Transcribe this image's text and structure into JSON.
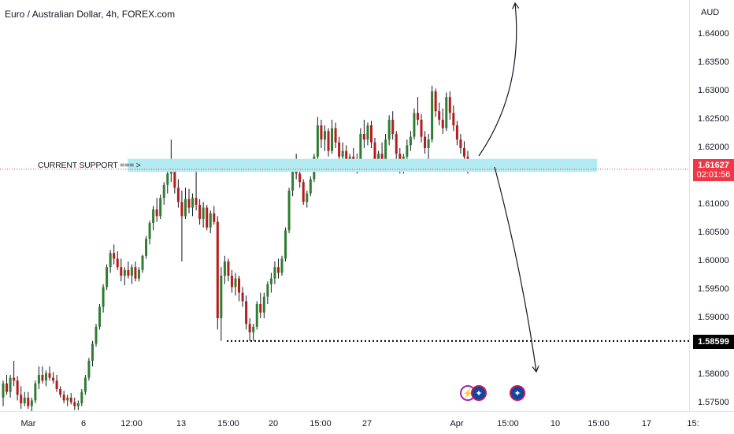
{
  "header": {
    "title": "Euro / Australian Dollar, 4h, FOREX.com"
  },
  "support_label": "CURRENT SUPPORT === >",
  "y_axis": {
    "currency": "AUD",
    "ticks": [
      "1.64000",
      "1.63500",
      "1.63000",
      "1.62500",
      "1.62000",
      "1.61000",
      "1.60500",
      "1.60000",
      "1.59500",
      "1.59000",
      "1.58000",
      "1.57500"
    ]
  },
  "price_tag": {
    "price": "1.61627",
    "countdown": "02:01:56"
  },
  "level_tag": "1.58599",
  "x_axis": {
    "ticks": [
      "Mar",
      "6",
      "12:00",
      "13",
      "15:00",
      "20",
      "15:00",
      "27",
      "Apr",
      "15:00",
      "10",
      "15:00",
      "17",
      "15:"
    ]
  },
  "events": [
    {
      "icon": "lightning-icon",
      "glyph": "⚡"
    },
    {
      "icon": "australia-flag-icon",
      "glyph": "✦"
    },
    {
      "icon": "australia-flag-icon",
      "glyph": "✦"
    }
  ],
  "colors": {
    "up": "#26a69a",
    "down": "#ef5350",
    "candle_up": "#2e7d32",
    "candle_down": "#b71c1c",
    "support_zone": "#b2ebf2",
    "price_line": "#f23645"
  },
  "chart_data": {
    "type": "candlestick",
    "symbol": "EURAUD",
    "timeframe": "4h",
    "ylim": [
      1.5735,
      1.6455
    ],
    "last_price": 1.61627,
    "support_zone": [
      1.6158,
      1.6181
    ],
    "support_level": 1.58599,
    "candles": [
      [
        1.576,
        1.579,
        1.5745,
        1.5785
      ],
      [
        1.5785,
        1.58,
        1.5765,
        1.577
      ],
      [
        1.577,
        1.58,
        1.576,
        1.5795
      ],
      [
        1.5795,
        1.5825,
        1.578,
        1.579
      ],
      [
        1.579,
        1.5798,
        1.5755,
        1.5765
      ],
      [
        1.5765,
        1.578,
        1.574,
        1.575
      ],
      [
        1.575,
        1.577,
        1.5745,
        1.576
      ],
      [
        1.576,
        1.577,
        1.574,
        1.5745
      ],
      [
        1.5745,
        1.576,
        1.5735,
        1.5755
      ],
      [
        1.5755,
        1.579,
        1.575,
        1.5785
      ],
      [
        1.5785,
        1.5815,
        1.5775,
        1.58
      ],
      [
        1.58,
        1.5815,
        1.5785,
        1.579
      ],
      [
        1.579,
        1.5808,
        1.578,
        1.5803
      ],
      [
        1.5803,
        1.5815,
        1.579,
        1.5795
      ],
      [
        1.5795,
        1.5805,
        1.5785,
        1.579
      ],
      [
        1.579,
        1.58,
        1.577,
        1.5775
      ],
      [
        1.5775,
        1.578,
        1.576,
        1.5765
      ],
      [
        1.5765,
        1.5772,
        1.575,
        1.5755
      ],
      [
        1.5755,
        1.5765,
        1.5745,
        1.576
      ],
      [
        1.576,
        1.5768,
        1.5748,
        1.5752
      ],
      [
        1.5752,
        1.576,
        1.5738,
        1.5745
      ],
      [
        1.5745,
        1.5755,
        1.5738,
        1.575
      ],
      [
        1.575,
        1.5775,
        1.5745,
        1.577
      ],
      [
        1.577,
        1.58,
        1.5765,
        1.5795
      ],
      [
        1.5795,
        1.583,
        1.579,
        1.5825
      ],
      [
        1.5825,
        1.586,
        1.5815,
        1.5855
      ],
      [
        1.5855,
        1.589,
        1.585,
        1.5885
      ],
      [
        1.5885,
        1.5925,
        1.588,
        1.592
      ],
      [
        1.592,
        1.596,
        1.591,
        1.5955
      ],
      [
        1.5955,
        1.5995,
        1.595,
        1.599
      ],
      [
        1.599,
        1.602,
        1.598,
        1.6015
      ],
      [
        1.6015,
        1.603,
        1.5995,
        1.6005
      ],
      [
        1.6005,
        1.6018,
        1.5985,
        1.599
      ],
      [
        1.599,
        1.6005,
        1.5965,
        1.5975
      ],
      [
        1.5975,
        1.599,
        1.5958,
        1.5985
      ],
      [
        1.5985,
        1.6,
        1.597,
        1.5975
      ],
      [
        1.5975,
        1.5995,
        1.596,
        1.599
      ],
      [
        1.599,
        1.6,
        1.5965,
        1.597
      ],
      [
        1.597,
        1.599,
        1.5965,
        1.5985
      ],
      [
        1.5985,
        1.6012,
        1.598,
        1.601
      ],
      [
        1.601,
        1.6045,
        1.6005,
        1.604
      ],
      [
        1.604,
        1.6072,
        1.603,
        1.6068
      ],
      [
        1.6068,
        1.6098,
        1.6055,
        1.6092
      ],
      [
        1.6092,
        1.6112,
        1.607,
        1.608
      ],
      [
        1.608,
        1.6118,
        1.6075,
        1.6112
      ],
      [
        1.6112,
        1.614,
        1.61,
        1.6135
      ],
      [
        1.6135,
        1.616,
        1.612,
        1.6155
      ],
      [
        1.6155,
        1.6215,
        1.614,
        1.6175
      ],
      [
        1.6175,
        1.618,
        1.612,
        1.613
      ],
      [
        1.613,
        1.6145,
        1.6095,
        1.6105
      ],
      [
        1.6105,
        1.6125,
        1.6,
        1.608
      ],
      [
        1.608,
        1.613,
        1.6075,
        1.611
      ],
      [
        1.611,
        1.6128,
        1.6085,
        1.6095
      ],
      [
        1.6095,
        1.612,
        1.608,
        1.6112
      ],
      [
        1.6112,
        1.616,
        1.609,
        1.61
      ],
      [
        1.61,
        1.611,
        1.6065,
        1.6075
      ],
      [
        1.6075,
        1.6105,
        1.606,
        1.6095
      ],
      [
        1.6095,
        1.61,
        1.6055,
        1.606
      ],
      [
        1.606,
        1.609,
        1.605,
        1.6085
      ],
      [
        1.6085,
        1.6098,
        1.6065,
        1.607
      ],
      [
        1.607,
        1.608,
        1.588,
        1.59
      ],
      [
        1.59,
        1.599,
        1.586,
        1.5975
      ],
      [
        1.5975,
        1.601,
        1.596,
        1.6
      ],
      [
        1.6,
        1.6005,
        1.5965,
        1.5975
      ],
      [
        1.5975,
        1.5985,
        1.5945,
        1.5955
      ],
      [
        1.5955,
        1.598,
        1.594,
        1.597
      ],
      [
        1.597,
        1.5975,
        1.593,
        1.5945
      ],
      [
        1.5945,
        1.5955,
        1.592,
        1.593
      ],
      [
        1.593,
        1.594,
        1.588,
        1.589
      ],
      [
        1.589,
        1.59,
        1.586,
        1.5875
      ],
      [
        1.5875,
        1.589,
        1.586,
        1.5885
      ],
      [
        1.5885,
        1.593,
        1.588,
        1.5925
      ],
      [
        1.5925,
        1.5945,
        1.59,
        1.591
      ],
      [
        1.591,
        1.5945,
        1.59,
        1.5938
      ],
      [
        1.5938,
        1.5965,
        1.5925,
        1.596
      ],
      [
        1.596,
        1.598,
        1.5945,
        1.597
      ],
      [
        1.597,
        1.6,
        1.596,
        1.599
      ],
      [
        1.599,
        1.6005,
        1.597,
        1.598
      ],
      [
        1.598,
        1.601,
        1.5975,
        1.6005
      ],
      [
        1.6005,
        1.606,
        1.6,
        1.6055
      ],
      [
        1.6055,
        1.613,
        1.605,
        1.6125
      ],
      [
        1.6125,
        1.6175,
        1.6115,
        1.617
      ],
      [
        1.617,
        1.619,
        1.6145,
        1.6155
      ],
      [
        1.6155,
        1.616,
        1.613,
        1.614
      ],
      [
        1.614,
        1.6145,
        1.61,
        1.6105
      ],
      [
        1.6105,
        1.6125,
        1.6095,
        1.612
      ],
      [
        1.612,
        1.615,
        1.6115,
        1.6145
      ],
      [
        1.6145,
        1.619,
        1.614,
        1.6185
      ],
      [
        1.6185,
        1.6255,
        1.618,
        1.624
      ],
      [
        1.624,
        1.625,
        1.62,
        1.6215
      ],
      [
        1.6215,
        1.624,
        1.6195,
        1.623
      ],
      [
        1.623,
        1.6235,
        1.6185,
        1.6195
      ],
      [
        1.6195,
        1.625,
        1.619,
        1.6235
      ],
      [
        1.6235,
        1.6245,
        1.62,
        1.621
      ],
      [
        1.621,
        1.622,
        1.6175,
        1.6185
      ],
      [
        1.6185,
        1.621,
        1.6165,
        1.6195
      ],
      [
        1.6195,
        1.6205,
        1.616,
        1.617
      ],
      [
        1.617,
        1.619,
        1.616,
        1.6185
      ],
      [
        1.6185,
        1.62,
        1.6165,
        1.6175
      ],
      [
        1.6175,
        1.619,
        1.6155,
        1.618
      ],
      [
        1.618,
        1.6235,
        1.6175,
        1.6225
      ],
      [
        1.6225,
        1.625,
        1.62,
        1.6215
      ],
      [
        1.6215,
        1.6245,
        1.6205,
        1.624
      ],
      [
        1.624,
        1.6248,
        1.62,
        1.621
      ],
      [
        1.621,
        1.6218,
        1.616,
        1.617
      ],
      [
        1.617,
        1.6195,
        1.616,
        1.619
      ],
      [
        1.619,
        1.621,
        1.6165,
        1.6175
      ],
      [
        1.6175,
        1.6225,
        1.6165,
        1.6215
      ],
      [
        1.6215,
        1.6258,
        1.6205,
        1.625
      ],
      [
        1.625,
        1.6265,
        1.6215,
        1.6225
      ],
      [
        1.6225,
        1.623,
        1.618,
        1.619
      ],
      [
        1.619,
        1.62,
        1.6155,
        1.6165
      ],
      [
        1.6165,
        1.619,
        1.6155,
        1.6185
      ],
      [
        1.6185,
        1.6215,
        1.6175,
        1.6205
      ],
      [
        1.6205,
        1.623,
        1.6195,
        1.622
      ],
      [
        1.622,
        1.627,
        1.6215,
        1.6262
      ],
      [
        1.6262,
        1.629,
        1.624,
        1.625
      ],
      [
        1.625,
        1.626,
        1.621,
        1.622
      ],
      [
        1.622,
        1.623,
        1.619,
        1.62
      ],
      [
        1.62,
        1.6225,
        1.616,
        1.6215
      ],
      [
        1.6215,
        1.631,
        1.621,
        1.63
      ],
      [
        1.63,
        1.6305,
        1.6255,
        1.6265
      ],
      [
        1.6265,
        1.628,
        1.624,
        1.625
      ],
      [
        1.625,
        1.627,
        1.6225,
        1.6235
      ],
      [
        1.6235,
        1.6298,
        1.623,
        1.629
      ],
      [
        1.629,
        1.63,
        1.625,
        1.6262
      ],
      [
        1.6262,
        1.6275,
        1.623,
        1.624
      ],
      [
        1.624,
        1.6248,
        1.6205,
        1.6215
      ],
      [
        1.6215,
        1.6225,
        1.619,
        1.62
      ],
      [
        1.62,
        1.6212,
        1.6175,
        1.6185
      ],
      [
        1.6185,
        1.6195,
        1.6155,
        1.6163
      ]
    ]
  }
}
